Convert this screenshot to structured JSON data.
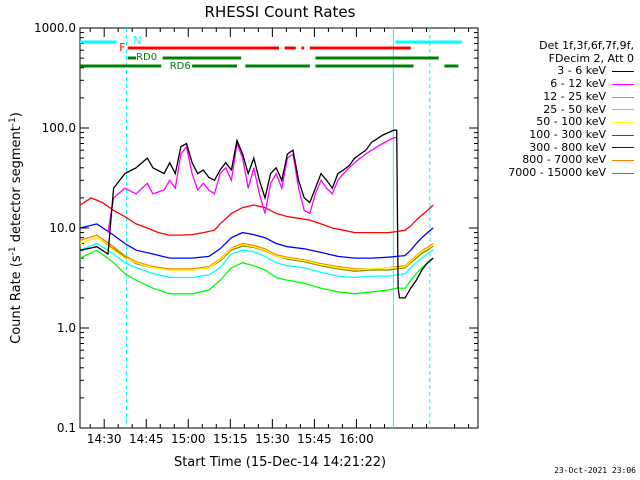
{
  "chart_data": {
    "type": "line",
    "title": "RHESSI Count Rates",
    "xlabel": "Start Time (15-Dec-14 14:21:22)",
    "ylabel_main": "Count Rate (s",
    "ylabel_sup1": "-1",
    "ylabel_mid": " detector segment",
    "ylabel_sup2": "-1",
    "ylabel_end": ")",
    "y_scale": "log",
    "ylim": [
      0.1,
      1000
    ],
    "x_tick_labels": [
      "14:30",
      "14:45",
      "15:00",
      "15:15",
      "15:30",
      "15:45",
      "16:00"
    ],
    "y_tick_labels": [
      "0.1",
      "1.0",
      "10.0",
      "100.0",
      "1000.0"
    ],
    "legend_header": [
      "Det 1f,3f,6f,7f,9f,",
      "FDecim 2, Att 0"
    ],
    "series": [
      {
        "name": "3 - 6 keV",
        "color": "#000000",
        "points": [
          [
            0,
            6
          ],
          [
            6,
            6.5
          ],
          [
            10,
            5.5
          ],
          [
            12,
            25
          ],
          [
            16,
            35
          ],
          [
            20,
            40
          ],
          [
            24,
            50
          ],
          [
            26,
            40
          ],
          [
            30,
            35
          ],
          [
            32,
            45
          ],
          [
            34,
            35
          ],
          [
            36,
            65
          ],
          [
            38,
            70
          ],
          [
            40,
            45
          ],
          [
            42,
            35
          ],
          [
            44,
            38
          ],
          [
            46,
            32
          ],
          [
            48,
            30
          ],
          [
            50,
            38
          ],
          [
            52,
            45
          ],
          [
            54,
            38
          ],
          [
            56,
            75
          ],
          [
            58,
            55
          ],
          [
            60,
            35
          ],
          [
            62,
            50
          ],
          [
            64,
            30
          ],
          [
            66,
            20
          ],
          [
            68,
            35
          ],
          [
            70,
            40
          ],
          [
            72,
            30
          ],
          [
            74,
            55
          ],
          [
            76,
            60
          ],
          [
            78,
            30
          ],
          [
            80,
            20
          ],
          [
            82,
            18
          ],
          [
            84,
            25
          ],
          [
            86,
            35
          ],
          [
            88,
            30
          ],
          [
            90,
            25
          ],
          [
            92,
            35
          ],
          [
            94,
            38
          ],
          [
            96,
            42
          ],
          [
            98,
            50
          ],
          [
            100,
            55
          ],
          [
            102,
            60
          ],
          [
            104,
            72
          ],
          [
            106,
            78
          ],
          [
            108,
            85
          ],
          [
            110,
            90
          ],
          [
            112,
            95
          ],
          [
            113,
            95
          ],
          [
            113.5,
            2.5
          ],
          [
            114,
            2
          ],
          [
            116,
            2
          ],
          [
            118,
            2.5
          ],
          [
            120,
            3
          ],
          [
            122,
            3.8
          ],
          [
            124,
            4.5
          ],
          [
            126,
            5
          ]
        ]
      },
      {
        "name": "6 - 12 keV",
        "color": "#ff00ff",
        "points": [
          [
            10,
            9
          ],
          [
            12,
            20
          ],
          [
            16,
            25
          ],
          [
            20,
            22
          ],
          [
            24,
            28
          ],
          [
            26,
            22
          ],
          [
            30,
            24
          ],
          [
            32,
            30
          ],
          [
            34,
            25
          ],
          [
            36,
            55
          ],
          [
            38,
            65
          ],
          [
            40,
            35
          ],
          [
            42,
            24
          ],
          [
            44,
            28
          ],
          [
            46,
            24
          ],
          [
            48,
            22
          ],
          [
            50,
            35
          ],
          [
            52,
            40
          ],
          [
            54,
            30
          ],
          [
            56,
            70
          ],
          [
            58,
            50
          ],
          [
            60,
            25
          ],
          [
            62,
            40
          ],
          [
            64,
            22
          ],
          [
            66,
            14
          ],
          [
            68,
            28
          ],
          [
            70,
            35
          ],
          [
            72,
            25
          ],
          [
            74,
            50
          ],
          [
            76,
            55
          ],
          [
            78,
            25
          ],
          [
            80,
            15
          ],
          [
            82,
            14
          ],
          [
            84,
            22
          ],
          [
            86,
            30
          ],
          [
            88,
            25
          ],
          [
            90,
            22
          ],
          [
            92,
            30
          ],
          [
            94,
            35
          ],
          [
            96,
            40
          ],
          [
            98,
            45
          ],
          [
            100,
            50
          ],
          [
            102,
            55
          ],
          [
            104,
            60
          ],
          [
            106,
            65
          ],
          [
            108,
            70
          ],
          [
            110,
            75
          ],
          [
            112,
            80
          ],
          [
            113,
            80
          ]
        ]
      },
      {
        "name": "12 - 25 keV",
        "color": "#00ff00",
        "points": [
          [
            0,
            5
          ],
          [
            6,
            6
          ],
          [
            12,
            4.5
          ],
          [
            16,
            3.5
          ],
          [
            20,
            3
          ],
          [
            26,
            2.5
          ],
          [
            32,
            2.2
          ],
          [
            40,
            2.2
          ],
          [
            46,
            2.4
          ],
          [
            50,
            3
          ],
          [
            54,
            4
          ],
          [
            58,
            4.5
          ],
          [
            62,
            4.2
          ],
          [
            66,
            3.8
          ],
          [
            70,
            3.2
          ],
          [
            74,
            3
          ],
          [
            80,
            2.8
          ],
          [
            86,
            2.5
          ],
          [
            92,
            2.3
          ],
          [
            98,
            2.2
          ],
          [
            104,
            2.3
          ],
          [
            110,
            2.4
          ],
          [
            113,
            2.5
          ],
          [
            116,
            2.5
          ],
          [
            118,
            3
          ],
          [
            120,
            3.5
          ],
          [
            122,
            4
          ],
          [
            124,
            4.5
          ],
          [
            126,
            5
          ]
        ]
      },
      {
        "name": "25 - 50 keV",
        "color": "#00ffff",
        "points": [
          [
            0,
            6
          ],
          [
            6,
            7
          ],
          [
            12,
            5.5
          ],
          [
            16,
            4.5
          ],
          [
            20,
            4
          ],
          [
            26,
            3.5
          ],
          [
            32,
            3.2
          ],
          [
            40,
            3.2
          ],
          [
            46,
            3.4
          ],
          [
            50,
            4
          ],
          [
            54,
            5.5
          ],
          [
            58,
            6
          ],
          [
            62,
            5.8
          ],
          [
            66,
            5.2
          ],
          [
            70,
            4.5
          ],
          [
            74,
            4.2
          ],
          [
            80,
            4
          ],
          [
            86,
            3.6
          ],
          [
            92,
            3.3
          ],
          [
            98,
            3.2
          ],
          [
            104,
            3.3
          ],
          [
            110,
            3.3
          ],
          [
            113,
            3.4
          ],
          [
            116,
            3.5
          ],
          [
            118,
            4
          ],
          [
            120,
            4.5
          ],
          [
            122,
            5
          ],
          [
            124,
            5.5
          ],
          [
            126,
            6
          ]
        ]
      },
      {
        "name": "50 - 100 keV",
        "color": "#ffff00",
        "points": [
          [
            0,
            7
          ],
          [
            6,
            8
          ],
          [
            12,
            6
          ],
          [
            16,
            5
          ],
          [
            20,
            4.5
          ],
          [
            26,
            4
          ],
          [
            32,
            3.8
          ],
          [
            40,
            3.8
          ],
          [
            46,
            4
          ],
          [
            50,
            4.8
          ],
          [
            54,
            6.2
          ],
          [
            58,
            6.8
          ],
          [
            62,
            6.5
          ],
          [
            66,
            6
          ],
          [
            70,
            5.2
          ],
          [
            74,
            5
          ],
          [
            80,
            4.7
          ],
          [
            86,
            4.3
          ],
          [
            92,
            4
          ],
          [
            98,
            3.8
          ],
          [
            104,
            3.9
          ],
          [
            110,
            4
          ],
          [
            113,
            4
          ],
          [
            116,
            4.1
          ],
          [
            118,
            4.6
          ],
          [
            120,
            5.2
          ],
          [
            122,
            5.8
          ],
          [
            124,
            6.2
          ],
          [
            126,
            6.8
          ]
        ]
      },
      {
        "name": "100 - 300 keV",
        "color": "#ff0000",
        "points": [
          [
            0,
            17
          ],
          [
            4,
            20
          ],
          [
            8,
            18
          ],
          [
            12,
            15
          ],
          [
            16,
            13
          ],
          [
            20,
            11
          ],
          [
            24,
            10
          ],
          [
            28,
            9
          ],
          [
            32,
            8.5
          ],
          [
            36,
            8.5
          ],
          [
            40,
            8.6
          ],
          [
            44,
            9
          ],
          [
            48,
            9.5
          ],
          [
            50,
            11
          ],
          [
            54,
            14
          ],
          [
            58,
            16
          ],
          [
            62,
            17
          ],
          [
            66,
            16
          ],
          [
            70,
            14
          ],
          [
            74,
            13
          ],
          [
            78,
            12.5
          ],
          [
            82,
            12
          ],
          [
            86,
            11
          ],
          [
            90,
            10
          ],
          [
            94,
            9.5
          ],
          [
            98,
            9
          ],
          [
            102,
            9
          ],
          [
            106,
            9
          ],
          [
            110,
            9
          ],
          [
            113,
            9.2
          ],
          [
            116,
            9.5
          ],
          [
            118,
            10.5
          ],
          [
            120,
            12
          ],
          [
            122,
            13.5
          ],
          [
            124,
            15
          ],
          [
            126,
            17
          ]
        ]
      },
      {
        "name": "300 - 800 keV",
        "color": "#0000ff",
        "points": [
          [
            0,
            10
          ],
          [
            6,
            11
          ],
          [
            12,
            8.5
          ],
          [
            16,
            7
          ],
          [
            20,
            6
          ],
          [
            26,
            5.5
          ],
          [
            32,
            5
          ],
          [
            40,
            5
          ],
          [
            46,
            5.2
          ],
          [
            50,
            6.2
          ],
          [
            54,
            8
          ],
          [
            58,
            9
          ],
          [
            62,
            8.6
          ],
          [
            66,
            8
          ],
          [
            70,
            7
          ],
          [
            74,
            6.5
          ],
          [
            80,
            6.2
          ],
          [
            86,
            5.7
          ],
          [
            92,
            5.2
          ],
          [
            98,
            5
          ],
          [
            104,
            5
          ],
          [
            110,
            5.1
          ],
          [
            113,
            5.2
          ],
          [
            116,
            5.3
          ],
          [
            118,
            6
          ],
          [
            120,
            7
          ],
          [
            122,
            8
          ],
          [
            124,
            9
          ],
          [
            126,
            10
          ]
        ]
      },
      {
        "name": "800 - 7000 keV",
        "color": "#ff8000",
        "points": [
          [
            0,
            7.5
          ],
          [
            6,
            8.5
          ],
          [
            12,
            6.5
          ],
          [
            16,
            5.3
          ],
          [
            20,
            4.6
          ],
          [
            26,
            4.1
          ],
          [
            32,
            3.9
          ],
          [
            40,
            3.9
          ],
          [
            46,
            4.1
          ],
          [
            50,
            4.9
          ],
          [
            54,
            6.3
          ],
          [
            58,
            7
          ],
          [
            62,
            6.7
          ],
          [
            66,
            6.2
          ],
          [
            70,
            5.4
          ],
          [
            74,
            5.1
          ],
          [
            80,
            4.8
          ],
          [
            86,
            4.4
          ],
          [
            92,
            4.1
          ],
          [
            98,
            3.9
          ],
          [
            104,
            3.9
          ],
          [
            110,
            4
          ],
          [
            113,
            4.1
          ],
          [
            116,
            4.2
          ],
          [
            118,
            4.7
          ],
          [
            120,
            5.3
          ],
          [
            122,
            5.9
          ],
          [
            124,
            6.4
          ],
          [
            126,
            7
          ]
        ]
      },
      {
        "name": "7000 - 15000 keV",
        "color": "#808000",
        "points": [
          [
            0,
            7
          ],
          [
            6,
            8
          ],
          [
            12,
            6.2
          ],
          [
            16,
            5.1
          ],
          [
            20,
            4.4
          ],
          [
            26,
            4
          ],
          [
            32,
            3.8
          ],
          [
            40,
            3.8
          ],
          [
            46,
            4
          ],
          [
            50,
            4.7
          ],
          [
            54,
            6
          ],
          [
            58,
            6.6
          ],
          [
            62,
            6.4
          ],
          [
            66,
            5.9
          ],
          [
            70,
            5.2
          ],
          [
            74,
            4.9
          ],
          [
            80,
            4.6
          ],
          [
            86,
            4.2
          ],
          [
            92,
            3.9
          ],
          [
            98,
            3.7
          ],
          [
            104,
            3.8
          ],
          [
            110,
            3.8
          ],
          [
            113,
            3.9
          ],
          [
            116,
            4
          ],
          [
            118,
            4.5
          ],
          [
            120,
            5
          ],
          [
            122,
            5.6
          ],
          [
            124,
            6
          ],
          [
            126,
            6.6
          ]
        ]
      }
    ],
    "flag_labels": {
      "night": "N",
      "flare": "F",
      "rd0": "RD0",
      "rd6": "RD6"
    },
    "flag_colors": {
      "night": "#00ffff",
      "flare": "#ff0000",
      "decim": "#008000"
    }
  },
  "timestamp": "23-Oct-2021 23:06"
}
